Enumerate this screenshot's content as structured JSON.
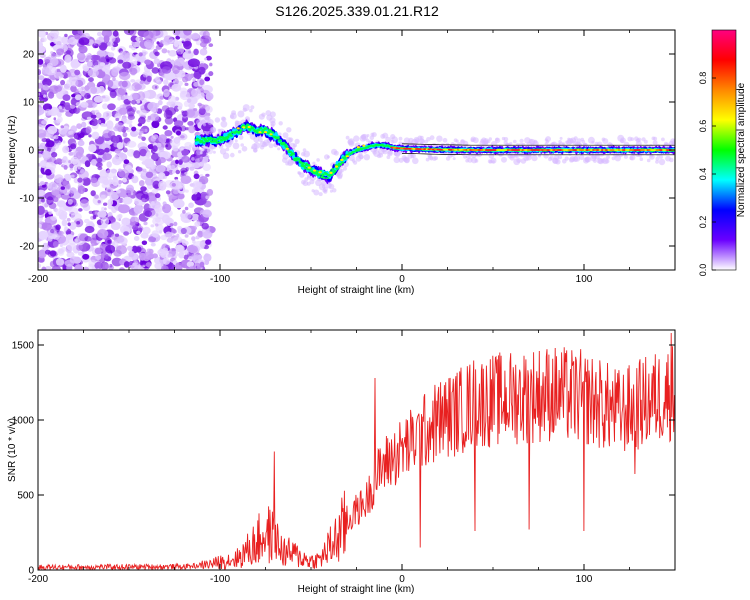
{
  "figure": {
    "title": "S126.2025.339.01.21.R12"
  },
  "chart_data": [
    {
      "type": "heatmap",
      "title": "S126.2025.339.01.21.R12",
      "xlabel": "Height of straight line (km)",
      "ylabel": "Frequency (Hz)",
      "xlim": [
        -200,
        150
      ],
      "ylim": [
        -25,
        25
      ],
      "x_ticks": [
        -200,
        -100,
        0,
        100
      ],
      "y_ticks": [
        -20,
        -10,
        0,
        10,
        20
      ],
      "x_tick_labels": [
        "-200",
        "-100",
        "0",
        "100"
      ],
      "y_tick_labels": [
        "-20",
        "-10",
        "0",
        "10",
        "20"
      ],
      "noise_region_x": [
        -200,
        -105
      ],
      "ridge": {
        "x": [
          -113,
          -105,
          -100,
          -95,
          -90,
          -85,
          -80,
          -75,
          -70,
          -65,
          -60,
          -55,
          -50,
          -45,
          -40,
          -35,
          -30,
          -25,
          -20,
          -15,
          -10,
          -5,
          0,
          10,
          20,
          40,
          60,
          80,
          100,
          120,
          150
        ],
        "f": [
          2.0,
          2.0,
          2.0,
          3.0,
          4.0,
          5.0,
          4.0,
          4.0,
          3.0,
          1.0,
          -1.0,
          -3.0,
          -4.0,
          -5.0,
          -5.5,
          -3.0,
          -1.0,
          0.0,
          0.5,
          1.0,
          1.0,
          0.5,
          0.3,
          0.2,
          0.1,
          0.0,
          0.0,
          0.0,
          0.0,
          0.0,
          0.0
        ]
      },
      "colorbar": {
        "label": "Normalized spectral amplitude",
        "range": [
          0,
          1
        ],
        "ticks": [
          0.0,
          0.2,
          0.4,
          0.6,
          0.8
        ],
        "tick_labels": [
          "0.0",
          "0.2",
          "0.4",
          "0.6",
          "0.8"
        ],
        "colors": [
          "#ffffff",
          "#6a00ff",
          "#0000ff",
          "#00ffff",
          "#00ff00",
          "#ffff00",
          "#ff8800",
          "#ff0000",
          "#ff0080"
        ]
      }
    },
    {
      "type": "line",
      "xlabel": "Height of straight line (km)",
      "ylabel": "SNR (10 * v/v)",
      "xlim": [
        -200,
        150
      ],
      "ylim": [
        0,
        1600
      ],
      "x_ticks": [
        -200,
        -100,
        0,
        100
      ],
      "y_ticks": [
        0,
        500,
        1000,
        1500
      ],
      "x_tick_labels": [
        "-200",
        "-100",
        "0",
        "100"
      ],
      "y_tick_labels": [
        "0",
        "500",
        "1000",
        "1500"
      ],
      "series": [
        {
          "name": "SNR",
          "color": "#e82020",
          "envelope": {
            "x": [
              -200,
              -120,
              -105,
              -90,
              -80,
              -75,
              -70,
              -65,
              -60,
              -55,
              -50,
              -45,
              -40,
              -35,
              -30,
              -25,
              -20,
              -15,
              -10,
              -5,
              0,
              10,
              20,
              30,
              40,
              50,
              60,
              80,
              100,
              120,
              130,
              140,
              150
            ],
            "y": [
              20,
              25,
              40,
              80,
              180,
              250,
              200,
              120,
              110,
              80,
              60,
              70,
              150,
              220,
              320,
              400,
              450,
              600,
              700,
              750,
              800,
              900,
              1000,
              1050,
              1120,
              1130,
              1150,
              1180,
              1150,
              1050,
              1100,
              1150,
              1200
            ]
          },
          "spikes": [
            {
              "x": -70,
              "y": 790
            },
            {
              "x": -15,
              "y": 1280
            },
            {
              "x": 5,
              "y": 1010
            },
            {
              "x": 10,
              "y": 150
            },
            {
              "x": 40,
              "y": 260
            },
            {
              "x": 70,
              "y": 270
            },
            {
              "x": 100,
              "y": 260
            },
            {
              "x": 128,
              "y": 640
            },
            {
              "x": 148,
              "y": 1580
            }
          ]
        }
      ]
    }
  ]
}
